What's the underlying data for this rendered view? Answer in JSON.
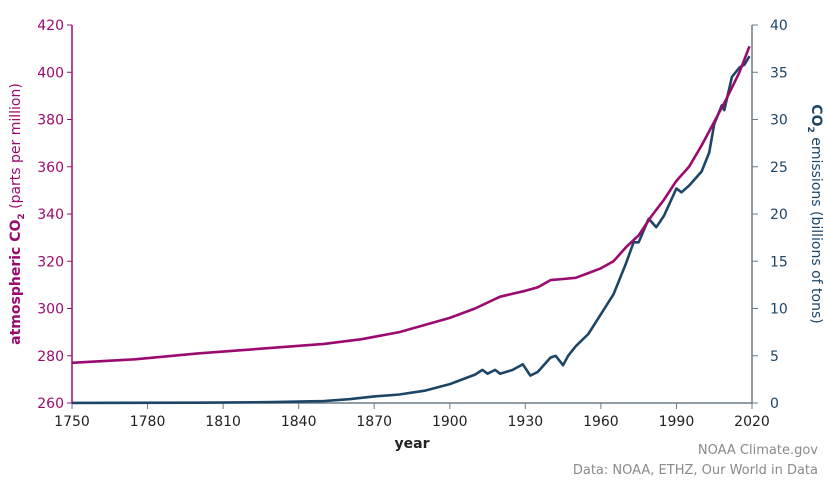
{
  "chart_data": {
    "type": "line",
    "xlabel": "year",
    "ylabel_left": {
      "main": "atmospheric CO",
      "sub": "2",
      "rest": " (parts per million)"
    },
    "ylabel_right": {
      "main": "CO",
      "sub": "2",
      "rest": " emissions (billions of tons)"
    },
    "xlim": [
      1750,
      2020
    ],
    "ylim_left": [
      260,
      420
    ],
    "ylim_right": [
      0,
      40
    ],
    "xticks": [
      "1750",
      "1780",
      "1810",
      "1840",
      "1870",
      "1900",
      "1930",
      "1960",
      "1990",
      "2020"
    ],
    "yticks_left": [
      "260",
      "280",
      "300",
      "320",
      "340",
      "360",
      "380",
      "400",
      "420"
    ],
    "yticks_right": [
      "0",
      "5",
      "10",
      "15",
      "20",
      "25",
      "30",
      "35",
      "40"
    ],
    "grid": false,
    "colors": {
      "co2_ppm": "#9b0a6e",
      "emissions": "#1d4566",
      "axis": "#6b7b88"
    },
    "series": [
      {
        "axis": "left",
        "x": [
          1750,
          1775,
          1800,
          1825,
          1850,
          1865,
          1880,
          1890,
          1900,
          1910,
          1920,
          1930,
          1935,
          1940,
          1945,
          1950,
          1955,
          1960,
          1965,
          1970,
          1975,
          1980,
          1985,
          1990,
          1995,
          2000,
          2005,
          2010,
          2015,
          2019
        ],
        "y": [
          277,
          278.5,
          281,
          283,
          285,
          287,
          290,
          293,
          296,
          300,
          305,
          307.5,
          309,
          312,
          312.5,
          313,
          315,
          317,
          320,
          326,
          331,
          339,
          346,
          354,
          360,
          369,
          379,
          389,
          400,
          411
        ]
      },
      {
        "axis": "right",
        "x": [
          1750,
          1800,
          1830,
          1850,
          1860,
          1870,
          1880,
          1890,
          1900,
          1905,
          1910,
          1913,
          1915,
          1918,
          1920,
          1925,
          1929,
          1932,
          1935,
          1940,
          1942,
          1945,
          1947,
          1950,
          1955,
          1960,
          1965,
          1970,
          1973,
          1975,
          1979,
          1982,
          1985,
          1990,
          1992,
          1995,
          2000,
          2003,
          2005,
          2008,
          2009,
          2012,
          2015,
          2017,
          2019
        ],
        "y": [
          0.01,
          0.03,
          0.1,
          0.2,
          0.4,
          0.7,
          0.9,
          1.3,
          2.0,
          2.5,
          3.0,
          3.5,
          3.1,
          3.5,
          3.1,
          3.5,
          4.1,
          2.9,
          3.3,
          4.8,
          5.0,
          4.0,
          5.0,
          6.0,
          7.3,
          9.4,
          11.5,
          14.8,
          17.0,
          17.0,
          19.5,
          18.6,
          19.8,
          22.7,
          22.3,
          23.0,
          24.5,
          26.5,
          29.5,
          31.5,
          31.0,
          34.5,
          35.5,
          35.8,
          36.7
        ]
      }
    ]
  },
  "credit": {
    "line1": "NOAA Climate.gov",
    "line2": "Data: NOAA, ETHZ, Our World in Data"
  }
}
